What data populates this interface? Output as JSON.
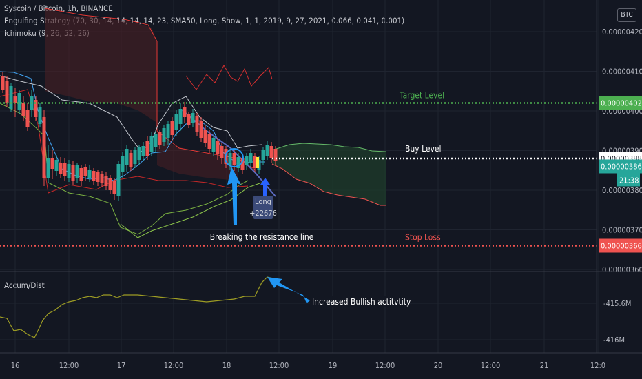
{
  "header": {
    "symbol": "Syscoin / Bitcoin, 1h, BINANCE",
    "strategy": "Engulfing Strategy (70, 30, 14, 14, 14, 14, 23, SMA50, Long, Show, 1, 1, 2019, 9, 27, 2021, 0.066, 0.041, 0.001)",
    "ichimoku": "Ichimoku (9, 26, 52, 26)"
  },
  "currency_badge": "BTC",
  "accum_title": "Accum/Dist",
  "colors": {
    "background": "#131722",
    "target": "#4caf50",
    "stop": "#ef5350",
    "buy": "#ffffff",
    "annotation": "#2196f3",
    "up_candle": "#26a69a",
    "down_candle": "#ef5350",
    "accum_line": "#9e9d24"
  },
  "chart_data": [
    {
      "type": "candlestick",
      "price_axis": {
        "labels": [
          "0.00000420",
          "0.00000410",
          "0.00000400",
          "0.00000390",
          "0.00000380",
          "0.00000370",
          "0.00000360"
        ],
        "range": [
          3.57e-06,
          4.23e-06
        ]
      },
      "time_axis": {
        "labels": [
          "16",
          "12:00",
          "17",
          "12:00",
          "18",
          "12:00",
          "19",
          "12:00",
          "20",
          "12:00",
          "21",
          "12:0"
        ]
      },
      "levels": [
        {
          "name": "Target Level",
          "value": "0.00000402",
          "color": "#4caf50"
        },
        {
          "name": "Buy Level",
          "value": "0.00000388",
          "color": "#ffffff"
        },
        {
          "name": "Stop Loss",
          "value": "0.00000366",
          "color": "#ef5350"
        }
      ],
      "last_price": {
        "value": "0.00000386",
        "countdown": "21:38"
      },
      "annotations": [
        {
          "text": "Breaking the resistance line"
        },
        {
          "text": "Long"
        },
        {
          "text": "+22676"
        }
      ]
    },
    {
      "type": "line",
      "name": "Accum/Dist",
      "axis_labels": [
        "-415.6M",
        "-416M"
      ],
      "annotation": "Increased Bullish actitvtity"
    }
  ]
}
